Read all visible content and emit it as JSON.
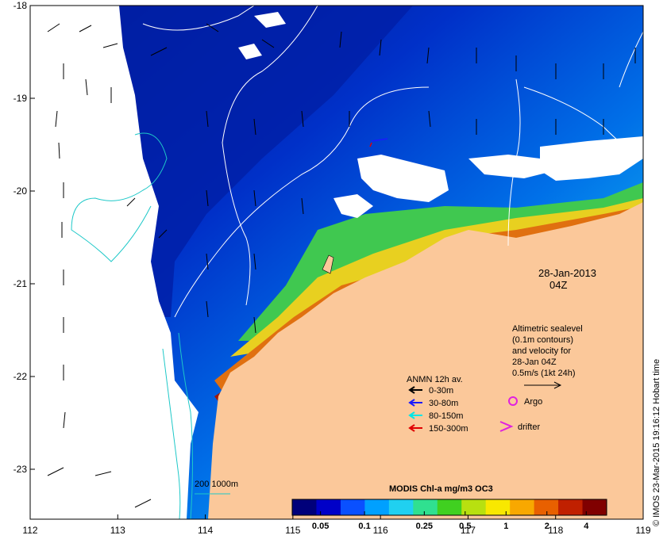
{
  "axes": {
    "x_ticks": [
      "112",
      "113",
      "114",
      "115",
      "116",
      "117",
      "118",
      "119"
    ],
    "y_ticks": [
      "-18",
      "-19",
      "-20",
      "-21",
      "-22",
      "-23"
    ]
  },
  "date": {
    "line1": "28-Jan-2013",
    "line2": "04Z"
  },
  "altimetry_note": {
    "lines": [
      "Altimetric sealevel",
      "(0.1m contours)",
      "and velocity for",
      "28-Jan 04Z",
      "0.5m/s (1kt 24h)"
    ]
  },
  "anmn_legend": {
    "title": "ANMN 12h av.",
    "items": [
      {
        "label": "0-30m",
        "color": "#000000"
      },
      {
        "label": "30-80m",
        "color": "#1a1aff"
      },
      {
        "label": "80-150m",
        "color": "#00e5e5"
      },
      {
        "label": "150-300m",
        "color": "#e00000"
      }
    ]
  },
  "markers": {
    "argo": {
      "label": "Argo",
      "symbol": "O",
      "color": "#e020e0"
    },
    "drifter": {
      "label": "drifter",
      "symbol": ">",
      "color": "#e020e0"
    }
  },
  "depth_legend": {
    "label": "200  1000m",
    "color": "#1ec8c8"
  },
  "colorbar": {
    "title": "MODIS Chl-a mg/m3 OC3",
    "tick_labels": [
      "0.05",
      "0.1",
      "0.25",
      "0.5",
      "1",
      "2",
      "4"
    ],
    "tick_fractions": [
      0.09,
      0.23,
      0.42,
      0.55,
      0.68,
      0.81,
      0.935
    ],
    "colors": [
      "#00007a",
      "#0000c8",
      "#0a50ff",
      "#00a0ff",
      "#20d0f0",
      "#30e090",
      "#40d020",
      "#b8e010",
      "#f8e800",
      "#f8a800",
      "#e86000",
      "#c02000",
      "#800000"
    ]
  },
  "credit": "© IMOS 23-Mar-2015 19:16:12 Hobart time",
  "colors": {
    "land": "#fbc89a",
    "cloud": "#ffffff",
    "deep_ocean": "#001a9a",
    "contour": "#ffffff",
    "isobath": "#1ec8c8"
  }
}
